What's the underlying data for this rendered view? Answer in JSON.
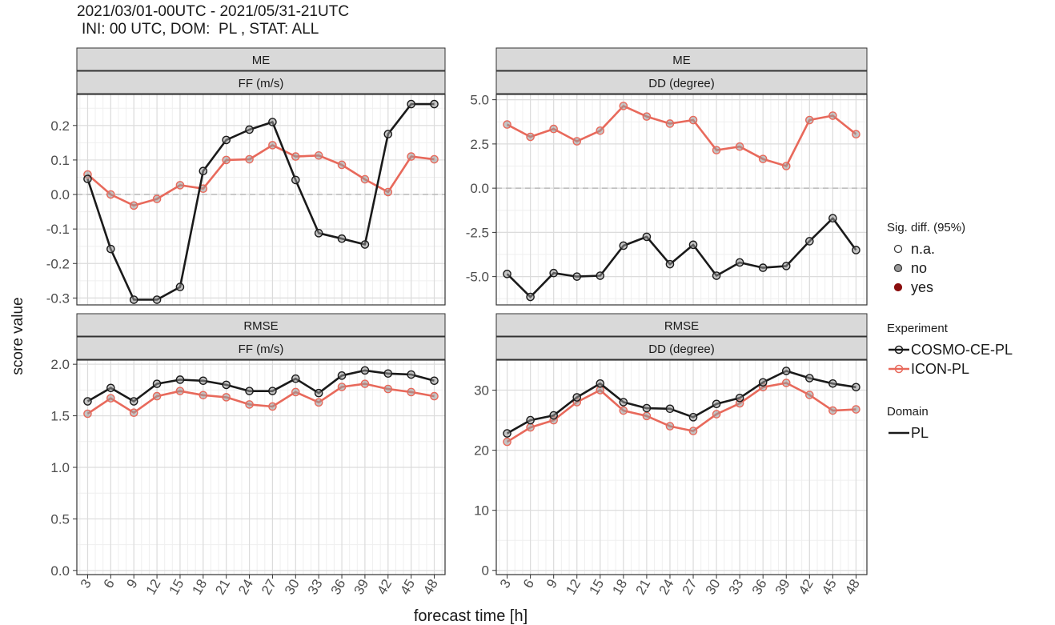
{
  "title": {
    "line1": "2021/03/01-00UTC - 2021/05/31-21UTC",
    "line2": "INI: 00 UTC, DOM:  PL , STAT: ALL"
  },
  "chart_data": {
    "type": "line",
    "xlabel": "forecast time [h]",
    "ylabel": "score value",
    "x": [
      3,
      6,
      9,
      12,
      15,
      18,
      21,
      24,
      27,
      30,
      33,
      36,
      39,
      42,
      45,
      48
    ],
    "colors": {
      "COSMO-CE-PL": "#1a1a1a",
      "ICON-PL": "#e8695b"
    },
    "panels": [
      {
        "strip_top": "ME",
        "strip_bottom": "FF (m/s)",
        "ylim": [
          -0.32,
          0.29
        ],
        "yticks": [
          -0.3,
          -0.2,
          -0.1,
          0.0,
          0.1,
          0.2
        ],
        "yticklabels": [
          "-0.3",
          "-0.2",
          "-0.1",
          "0.0",
          "0.1",
          "0.2"
        ],
        "zero_line": true,
        "series": [
          {
            "name": "COSMO-CE-PL",
            "values": [
              0.045,
              -0.158,
              -0.305,
              -0.305,
              -0.268,
              0.068,
              0.158,
              0.188,
              0.21,
              0.042,
              -0.112,
              -0.128,
              -0.145,
              0.175,
              0.262,
              0.262
            ]
          },
          {
            "name": "ICON-PL",
            "values": [
              0.058,
              0.0,
              -0.032,
              -0.013,
              0.027,
              0.017,
              0.1,
              0.102,
              0.143,
              0.11,
              0.113,
              0.086,
              0.044,
              0.007,
              0.11,
              0.102
            ]
          }
        ]
      },
      {
        "strip_top": "ME",
        "strip_bottom": "DD (degree)",
        "ylim": [
          -6.6,
          5.3
        ],
        "yticks": [
          -5.0,
          -2.5,
          0.0,
          2.5,
          5.0
        ],
        "yticklabels": [
          "-5.0",
          "-2.5",
          "0.0",
          "2.5",
          "5.0"
        ],
        "zero_line": true,
        "series": [
          {
            "name": "COSMO-CE-PL",
            "values": [
              -4.85,
              -6.15,
              -4.8,
              -5.0,
              -4.95,
              -3.25,
              -2.75,
              -4.3,
              -3.2,
              -4.95,
              -4.2,
              -4.5,
              -4.4,
              -3.0,
              -1.7,
              -3.5
            ]
          },
          {
            "name": "ICON-PL",
            "values": [
              3.6,
              2.9,
              3.35,
              2.65,
              3.25,
              4.65,
              4.05,
              3.65,
              3.85,
              2.15,
              2.35,
              1.65,
              1.25,
              3.85,
              4.1,
              3.05
            ]
          }
        ]
      },
      {
        "strip_top": "RMSE",
        "strip_bottom": "FF (m/s)",
        "ylim": [
          -0.04,
          2.04
        ],
        "yticks": [
          0.0,
          0.5,
          1.0,
          1.5,
          2.0
        ],
        "yticklabels": [
          "0.0",
          "0.5",
          "1.0",
          "1.5",
          "2.0"
        ],
        "zero_line": false,
        "series": [
          {
            "name": "COSMO-CE-PL",
            "values": [
              1.64,
              1.77,
              1.64,
              1.81,
              1.85,
              1.84,
              1.8,
              1.74,
              1.74,
              1.86,
              1.72,
              1.89,
              1.94,
              1.91,
              1.9,
              1.84
            ]
          },
          {
            "name": "ICON-PL",
            "values": [
              1.52,
              1.67,
              1.53,
              1.69,
              1.74,
              1.7,
              1.68,
              1.61,
              1.59,
              1.73,
              1.63,
              1.78,
              1.81,
              1.76,
              1.73,
              1.69
            ]
          }
        ]
      },
      {
        "strip_top": "RMSE",
        "strip_bottom": "DD (degree)",
        "ylim": [
          -0.7,
          35.0
        ],
        "yticks": [
          0,
          10,
          20,
          30
        ],
        "yticklabels": [
          "0",
          "10",
          "20",
          "30"
        ],
        "zero_line": false,
        "series": [
          {
            "name": "COSMO-CE-PL",
            "values": [
              22.8,
              25.0,
              25.8,
              28.8,
              31.1,
              28.0,
              27.0,
              26.9,
              25.5,
              27.7,
              28.7,
              31.3,
              33.2,
              32.0,
              31.1,
              30.5
            ]
          },
          {
            "name": "ICON-PL",
            "values": [
              21.4,
              23.8,
              25.0,
              28.0,
              30.0,
              26.6,
              25.7,
              24.0,
              23.2,
              26.0,
              27.8,
              30.5,
              31.2,
              29.2,
              26.6,
              26.8
            ]
          }
        ]
      }
    ],
    "legend": {
      "sig_title": "Sig. diff. (95%)",
      "sig_items": [
        {
          "label": "n.a.",
          "color": "#ffffff"
        },
        {
          "label": "no",
          "color": "#999999"
        },
        {
          "label": "yes",
          "color": "#8b0f0f"
        }
      ],
      "exp_title": "Experiment",
      "exp_items": [
        {
          "label": "COSMO-CE-PL",
          "color": "#1a1a1a"
        },
        {
          "label": "ICON-PL",
          "color": "#e8695b"
        }
      ],
      "dom_title": "Domain",
      "dom_items": [
        {
          "label": "PL"
        }
      ]
    }
  }
}
